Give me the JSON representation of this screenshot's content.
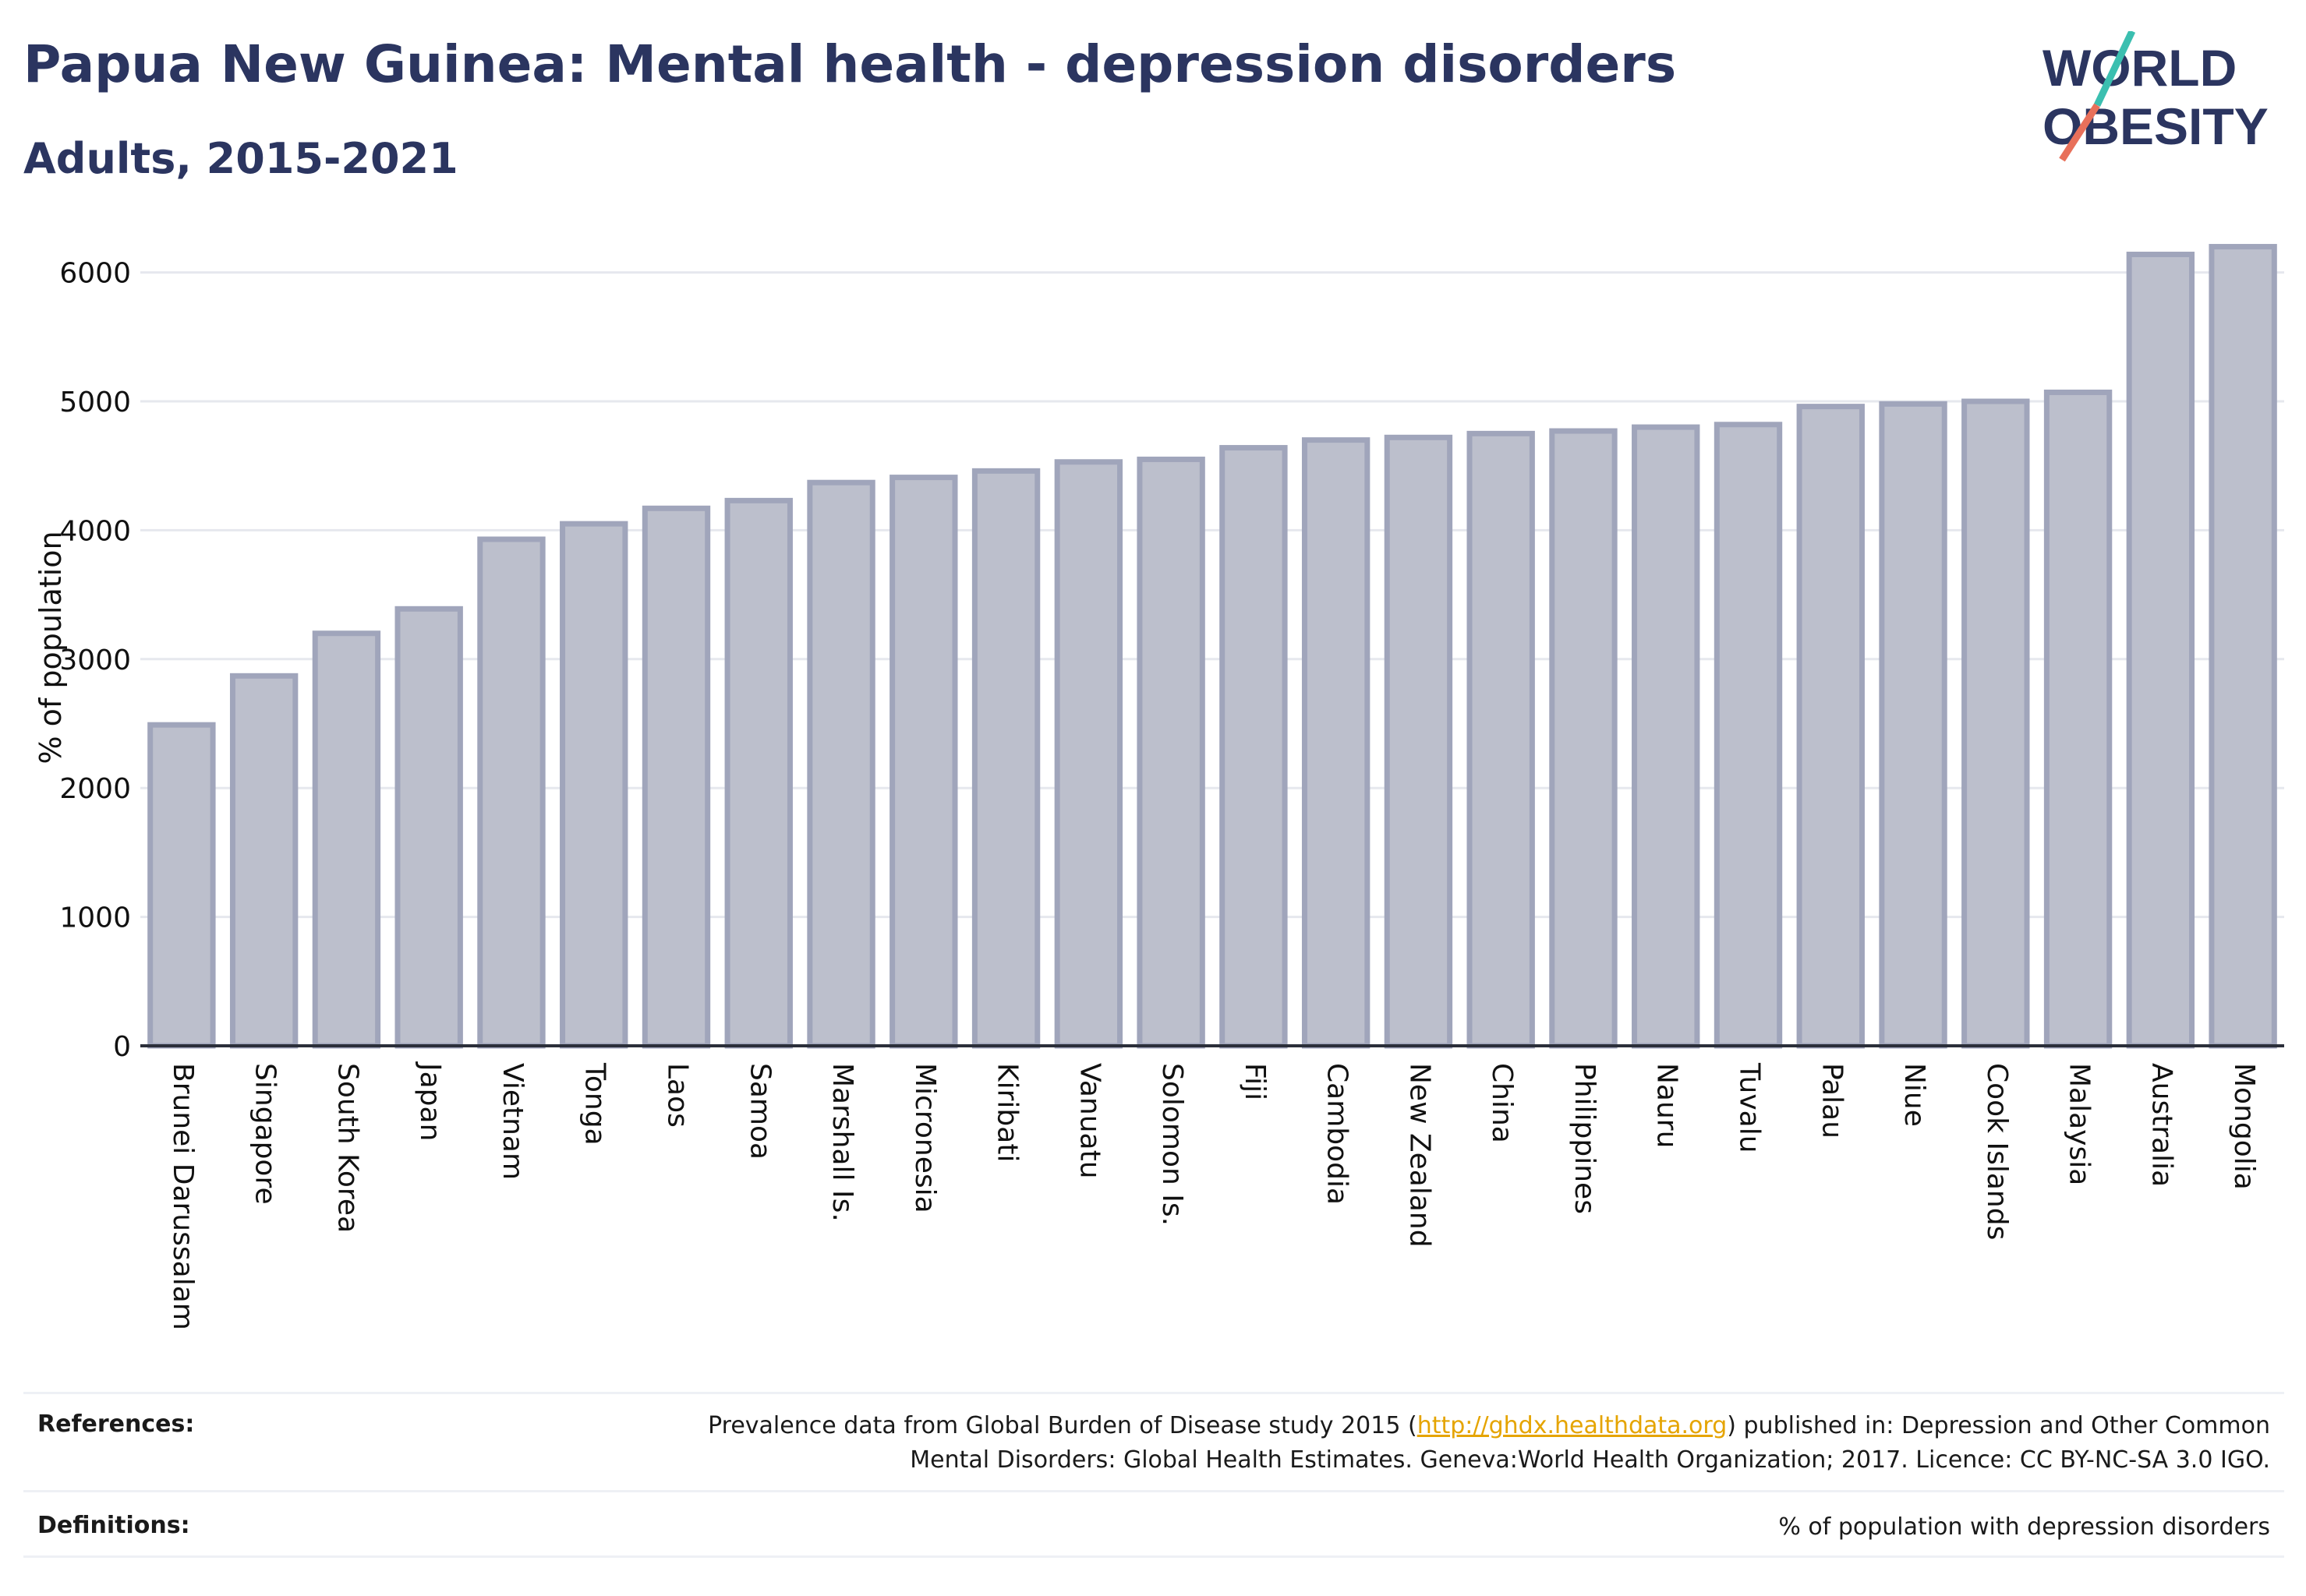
{
  "header": {
    "title": "Papua New Guinea: Mental health - depression disorders",
    "subtitle": "Adults, 2015-2021"
  },
  "logo": {
    "line1": "WORLD",
    "line2": "OBESITY",
    "colors": {
      "text": "#2b3560",
      "teal": "#3bbfb0",
      "coral": "#e8705a"
    }
  },
  "chart_data": {
    "type": "bar",
    "ylabel": "% of population",
    "xlabel": "",
    "ylim": [
      0,
      6300
    ],
    "yticks": [
      0,
      1000,
      2000,
      3000,
      4000,
      5000,
      6000
    ],
    "grid": true,
    "bar_color": "#bcbfcc",
    "bar_edge_color": "#a0a5bb",
    "categories": [
      "Brunei Darussalam",
      "Singapore",
      "South Korea",
      "Japan",
      "Vietnam",
      "Tonga",
      "Laos",
      "Samoa",
      "Marshall Is.",
      "Micronesia",
      "Kiribati",
      "Vanuatu",
      "Solomon Is.",
      "Fiji",
      "Cambodia",
      "New Zealand",
      "China",
      "Philippines",
      "Nauru",
      "Tuvalu",
      "Palau",
      "Niue",
      "Cook Islands",
      "Malaysia",
      "Australia",
      "Mongolia"
    ],
    "values": [
      2490,
      2870,
      3200,
      3390,
      3930,
      4050,
      4170,
      4230,
      4370,
      4410,
      4460,
      4530,
      4550,
      4640,
      4700,
      4720,
      4750,
      4770,
      4800,
      4820,
      4960,
      4980,
      5000,
      5070,
      6140,
      6200
    ]
  },
  "footer": {
    "references_label": "References:",
    "references_text_1a": "Prevalence data from Global Burden of Disease study 2015 (",
    "references_link": "http://ghdx.healthdata.org",
    "references_text_1b": ") published in: Depression and Other Common",
    "references_text_2": "Mental Disorders: Global Health Estimates. Geneva:World Health Organization; 2017. Licence: CC BY-NC-SA 3.0 IGO.",
    "definitions_label": "Definitions:",
    "definitions_text": "% of population with depression disorders"
  }
}
